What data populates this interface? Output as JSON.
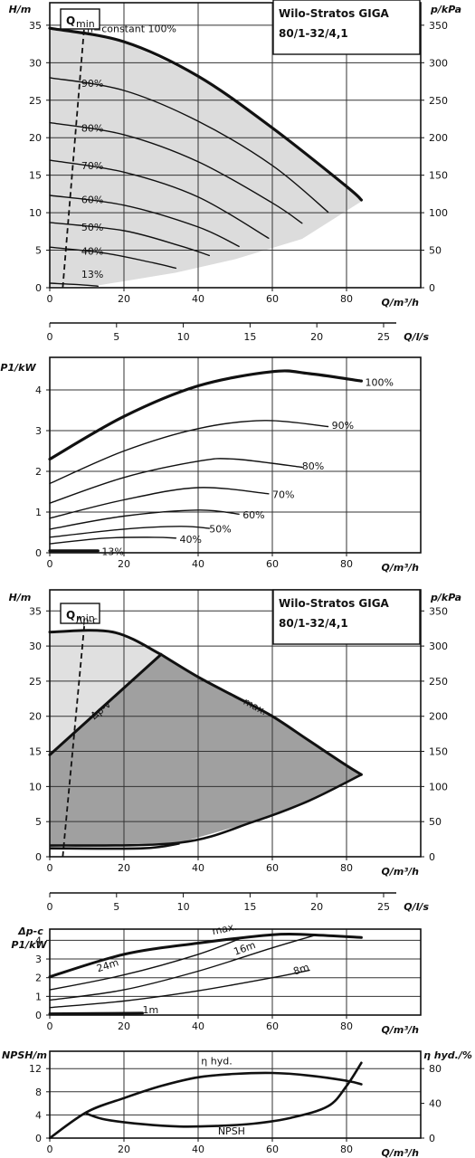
{
  "title_box": {
    "line1": "Wilo-Stratos GIGA",
    "line2": "80/1-32/4,1"
  },
  "qmin_label": "Q",
  "qmin_sub": "min",
  "chart_data": [
    {
      "type": "line",
      "axes": {
        "ylabel": "H/m",
        "y2label": "p/kPa",
        "xlabel": "Q/m³/h",
        "x2label": "Q/l/s",
        "xlim": [
          0,
          100
        ],
        "ylim": [
          0,
          38
        ],
        "y2lim": [
          0,
          380
        ],
        "x2lim": [
          0,
          27.78
        ],
        "xticks": [
          0,
          20,
          40,
          60,
          80
        ],
        "yticks": [
          0,
          5,
          10,
          15,
          20,
          25,
          30,
          35
        ],
        "y2ticks": [
          0,
          50,
          100,
          150,
          200,
          250,
          300,
          350
        ],
        "x2ticks": [
          0,
          5,
          10,
          15,
          20,
          25
        ],
        "grid": true
      },
      "annotations": {
        "top": "n=constant 100%"
      },
      "series": [
        {
          "name": "100%",
          "x": [
            0,
            20,
            40,
            60,
            80,
            84
          ],
          "y": [
            34.6,
            32.8,
            28.2,
            21.3,
            13.5,
            11.7
          ]
        },
        {
          "name": "90%",
          "x": [
            0,
            20,
            40,
            60,
            75
          ],
          "y": [
            28.0,
            26.3,
            22.2,
            16.3,
            10.1
          ]
        },
        {
          "name": "80%",
          "x": [
            0,
            20,
            40,
            60,
            68
          ],
          "y": [
            22.0,
            20.4,
            16.8,
            11.3,
            8.6
          ]
        },
        {
          "name": "70%",
          "x": [
            0,
            20,
            40,
            59
          ],
          "y": [
            17.0,
            15.4,
            12.1,
            6.6
          ]
        },
        {
          "name": "60%",
          "x": [
            0,
            20,
            40,
            51
          ],
          "y": [
            12.3,
            11.0,
            8.1,
            5.5
          ]
        },
        {
          "name": "50%",
          "x": [
            0,
            20,
            35,
            43
          ],
          "y": [
            8.7,
            7.6,
            5.6,
            4.3
          ]
        },
        {
          "name": "40%",
          "x": [
            0,
            15,
            28,
            34
          ],
          "y": [
            5.4,
            4.6,
            3.3,
            2.6
          ]
        },
        {
          "name": "13%",
          "x": [
            0,
            8,
            13
          ],
          "y": [
            0.6,
            0.4,
            0.2
          ]
        }
      ]
    },
    {
      "type": "line",
      "axes": {
        "ylabel": "P1/kW",
        "xlabel": "Q/m³/h",
        "xlim": [
          0,
          100
        ],
        "ylim": [
          0,
          4.8
        ],
        "yticks": [
          0,
          1,
          2,
          3,
          4
        ],
        "xticks": [
          0,
          20,
          40,
          60,
          80
        ],
        "grid": true
      },
      "series": [
        {
          "name": "100%",
          "x": [
            0,
            20,
            40,
            60,
            70,
            84
          ],
          "y": [
            2.3,
            3.35,
            4.1,
            4.45,
            4.4,
            4.22
          ]
        },
        {
          "name": "90%",
          "x": [
            0,
            20,
            40,
            58,
            75
          ],
          "y": [
            1.7,
            2.5,
            3.05,
            3.25,
            3.1
          ]
        },
        {
          "name": "80%",
          "x": [
            0,
            20,
            40,
            50,
            68
          ],
          "y": [
            1.22,
            1.85,
            2.25,
            2.3,
            2.1
          ]
        },
        {
          "name": "70%",
          "x": [
            0,
            20,
            40,
            59
          ],
          "y": [
            0.85,
            1.3,
            1.6,
            1.45
          ]
        },
        {
          "name": "60%",
          "x": [
            0,
            20,
            40,
            51
          ],
          "y": [
            0.58,
            0.9,
            1.05,
            0.95
          ]
        },
        {
          "name": "50%",
          "x": [
            0,
            20,
            35,
            43
          ],
          "y": [
            0.38,
            0.58,
            0.65,
            0.6
          ]
        },
        {
          "name": "40%",
          "x": [
            0,
            15,
            28,
            34
          ],
          "y": [
            0.22,
            0.36,
            0.38,
            0.36
          ]
        },
        {
          "name": "13%",
          "x": [
            0,
            13
          ],
          "y": [
            0.05,
            0.05
          ]
        }
      ]
    },
    {
      "type": "area",
      "axes": {
        "ylabel": "H/m",
        "y2label": "p/kPa",
        "xlabel": "Q/m³/h",
        "x2label": "Q/l/s",
        "xlim": [
          0,
          100
        ],
        "ylim": [
          0,
          38
        ],
        "y2lim": [
          0,
          380
        ],
        "x2lim": [
          0,
          27.78
        ],
        "xticks": [
          0,
          20,
          40,
          60,
          80
        ],
        "yticks": [
          0,
          5,
          10,
          15,
          20,
          25,
          30,
          35
        ],
        "y2ticks": [
          0,
          50,
          100,
          150,
          200,
          250,
          300,
          350
        ],
        "x2ticks": [
          0,
          5,
          10,
          15,
          20,
          25
        ],
        "grid": true
      },
      "labels": {
        "dpc": "Δp-c",
        "dpv": "Δp-v",
        "max": "max."
      },
      "series": [
        {
          "name": "max.",
          "x": [
            30,
            40,
            50,
            60,
            70,
            80,
            84
          ],
          "y": [
            28.8,
            25.6,
            22.8,
            20.0,
            16.5,
            13.0,
            11.7
          ]
        },
        {
          "name": "Δp-c",
          "x": [
            0,
            17,
            30
          ],
          "y": [
            32.0,
            32.0,
            28.8
          ]
        },
        {
          "name": "Δp-v",
          "x": [
            0,
            30
          ],
          "y": [
            14.5,
            28.8
          ]
        }
      ]
    },
    {
      "type": "line",
      "axes": {
        "ylabel": "P1/kW",
        "ylabel2": "Δp-c",
        "xlabel": "Q/m³/h",
        "xlim": [
          0,
          100
        ],
        "ylim": [
          0,
          4.6
        ],
        "yticks": [
          0,
          1,
          2,
          3,
          4
        ],
        "xticks": [
          0,
          20,
          40,
          60,
          80
        ],
        "grid": true
      },
      "series": [
        {
          "name": "max.",
          "x": [
            0,
            20,
            40,
            60,
            70,
            84
          ],
          "y": [
            2.05,
            3.25,
            3.85,
            4.3,
            4.3,
            4.15
          ]
        },
        {
          "name": "24m",
          "x": [
            0,
            20,
            40,
            52
          ],
          "y": [
            1.35,
            2.15,
            3.25,
            4.15
          ]
        },
        {
          "name": "16m",
          "x": [
            0,
            20,
            40,
            60,
            72
          ],
          "y": [
            0.8,
            1.35,
            2.35,
            3.6,
            4.3
          ]
        },
        {
          "name": "8m",
          "x": [
            0,
            20,
            40,
            60,
            70
          ],
          "y": [
            0.4,
            0.75,
            1.3,
            2.0,
            2.4
          ]
        },
        {
          "name": "1m",
          "x": [
            0,
            25
          ],
          "y": [
            0.07,
            0.1
          ]
        }
      ]
    },
    {
      "type": "line",
      "axes": {
        "ylabel": "NPSH/m",
        "y2label": "η hyd./%",
        "xlabel": "Q/m³/h",
        "xlim": [
          0,
          100
        ],
        "ylim": [
          0,
          15
        ],
        "y2lim": [
          0,
          100
        ],
        "yticks": [
          0,
          4,
          8,
          12
        ],
        "y2ticks": [
          0,
          40,
          80
        ],
        "xticks": [
          0,
          20,
          40,
          60,
          80
        ],
        "grid": true
      },
      "series": [
        {
          "name": "η hyd.",
          "x": [
            0,
            10,
            20,
            30,
            40,
            50,
            60,
            70,
            80,
            84
          ],
          "y2": [
            0,
            30,
            46,
            60,
            70,
            74,
            75,
            72,
            66,
            62
          ]
        },
        {
          "name": "NPSH",
          "x": [
            10,
            15,
            25,
            35,
            45,
            55,
            65,
            75,
            80,
            84
          ],
          "y": [
            4.2,
            3.2,
            2.4,
            2.0,
            2.1,
            2.5,
            3.5,
            5.5,
            9.0,
            13.0
          ]
        }
      ]
    }
  ]
}
